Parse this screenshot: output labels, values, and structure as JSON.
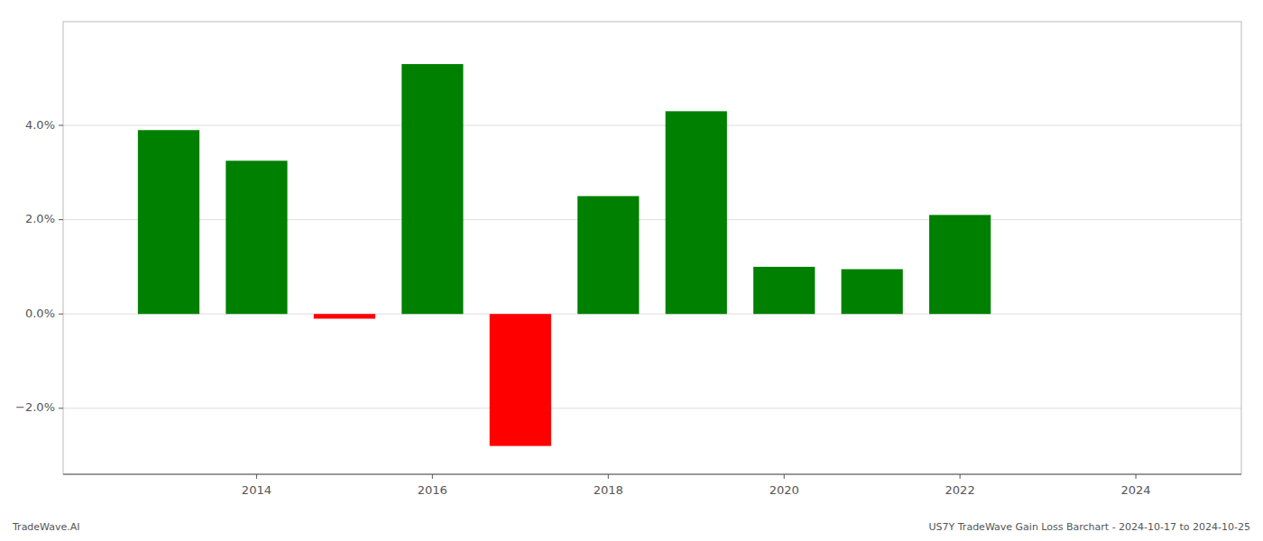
{
  "chart_data": {
    "type": "bar",
    "x": [
      2013,
      2014,
      2015,
      2016,
      2017,
      2018,
      2019,
      2020,
      2021,
      2022,
      2023
    ],
    "values": [
      0.039,
      0.0325,
      -0.001,
      0.053,
      -0.028,
      0.025,
      0.043,
      0.01,
      0.0095,
      0.021,
      0.0
    ],
    "colors": [
      "#008000",
      "#008000",
      "#ff0000",
      "#008000",
      "#ff0000",
      "#008000",
      "#008000",
      "#008000",
      "#008000",
      "#008000",
      "#008000"
    ],
    "xlim": [
      2011.8,
      2025.2
    ],
    "ylim": [
      -0.034,
      0.062
    ],
    "xticks": [
      2014,
      2016,
      2018,
      2020,
      2022,
      2024
    ],
    "yticks": [
      {
        "value": -0.02,
        "label": "−2.0%"
      },
      {
        "value": 0.0,
        "label": "0.0%"
      },
      {
        "value": 0.02,
        "label": "2.0%"
      },
      {
        "value": 0.04,
        "label": "4.0%"
      }
    ],
    "grid": true,
    "annotations": [
      "TradeWave.AI",
      "US7Y TradeWave Gain Loss Barchart - 2024-10-17 to 2024-10-25"
    ]
  }
}
